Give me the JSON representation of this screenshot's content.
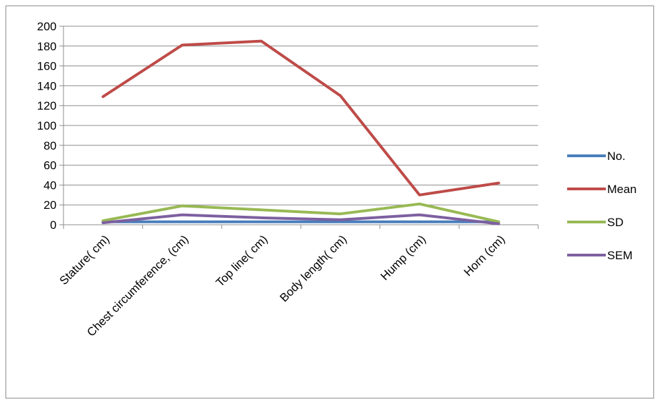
{
  "chart_data": {
    "type": "line",
    "title": "",
    "xlabel": "",
    "ylabel": "",
    "categories": [
      "Stature( cm)",
      "Chest circumference, (cm)",
      "Top line( cm)",
      "Body length( cm)",
      "Hump (cm)",
      "Horn (cm)"
    ],
    "ylim": [
      0,
      200
    ],
    "yticks": [
      0,
      20,
      40,
      60,
      80,
      100,
      120,
      140,
      160,
      180,
      200
    ],
    "grid": true,
    "legend_position": "right",
    "series": [
      {
        "name": "No.",
        "color": "#4a7ebb",
        "values": [
          3,
          3,
          3,
          3,
          3,
          3
        ]
      },
      {
        "name": "Mean",
        "color": "#be4b48",
        "values": [
          129,
          181,
          185,
          130,
          30,
          42
        ]
      },
      {
        "name": "SD",
        "color": "#98b954",
        "values": [
          4,
          19,
          15,
          11,
          21,
          3
        ]
      },
      {
        "name": "SEM",
        "color": "#7d60a0",
        "values": [
          2,
          10,
          7,
          5,
          10,
          1
        ]
      }
    ]
  }
}
